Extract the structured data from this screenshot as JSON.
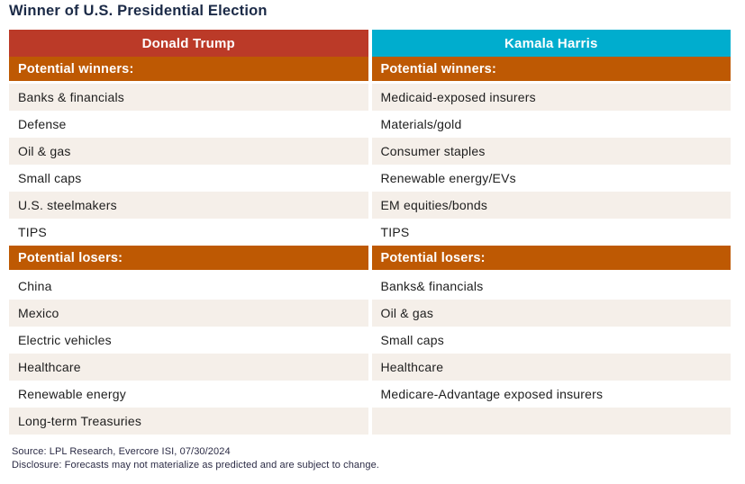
{
  "title": "Winner of U.S. Presidential Election",
  "colors": {
    "title_text": "#1b2a47",
    "trump_header_bg": "#bb3a28",
    "harris_header_bg": "#00adce",
    "section_header_bg": "#be5903",
    "header_text": "#ffffff",
    "row_stripe_bg": "#f5efe9",
    "row_plain_bg": "#ffffff",
    "cell_text": "#1e1e1e",
    "footer_text": "#2b2b45"
  },
  "chart_data": {
    "type": "table",
    "title": "Winner of U.S. Presidential Election",
    "columns": [
      "Donald Trump",
      "Kamala Harris"
    ],
    "sections": [
      {
        "label": "Potential winners:",
        "rows": [
          [
            "Banks & financials",
            "Medicaid-exposed insurers"
          ],
          [
            "Defense",
            "Materials/gold"
          ],
          [
            "Oil & gas",
            "Consumer staples"
          ],
          [
            "Small caps",
            "Renewable energy/EVs"
          ],
          [
            "U.S. steelmakers",
            "EM equities/bonds"
          ],
          [
            "TIPS",
            "TIPS"
          ]
        ]
      },
      {
        "label": "Potential losers:",
        "rows": [
          [
            "China",
            "Banks& financials"
          ],
          [
            "Mexico",
            "Oil & gas"
          ],
          [
            "Electric vehicles",
            "Small caps"
          ],
          [
            "Healthcare",
            "Healthcare"
          ],
          [
            "Renewable energy",
            "Medicare-Advantage exposed insurers"
          ],
          [
            "Long-term Treasuries",
            ""
          ]
        ]
      }
    ],
    "source": "Source: LPL Research, Evercore ISI, 07/30/2024",
    "disclosure": "Disclosure: Forecasts may not materialize as predicted and are subject to change."
  }
}
